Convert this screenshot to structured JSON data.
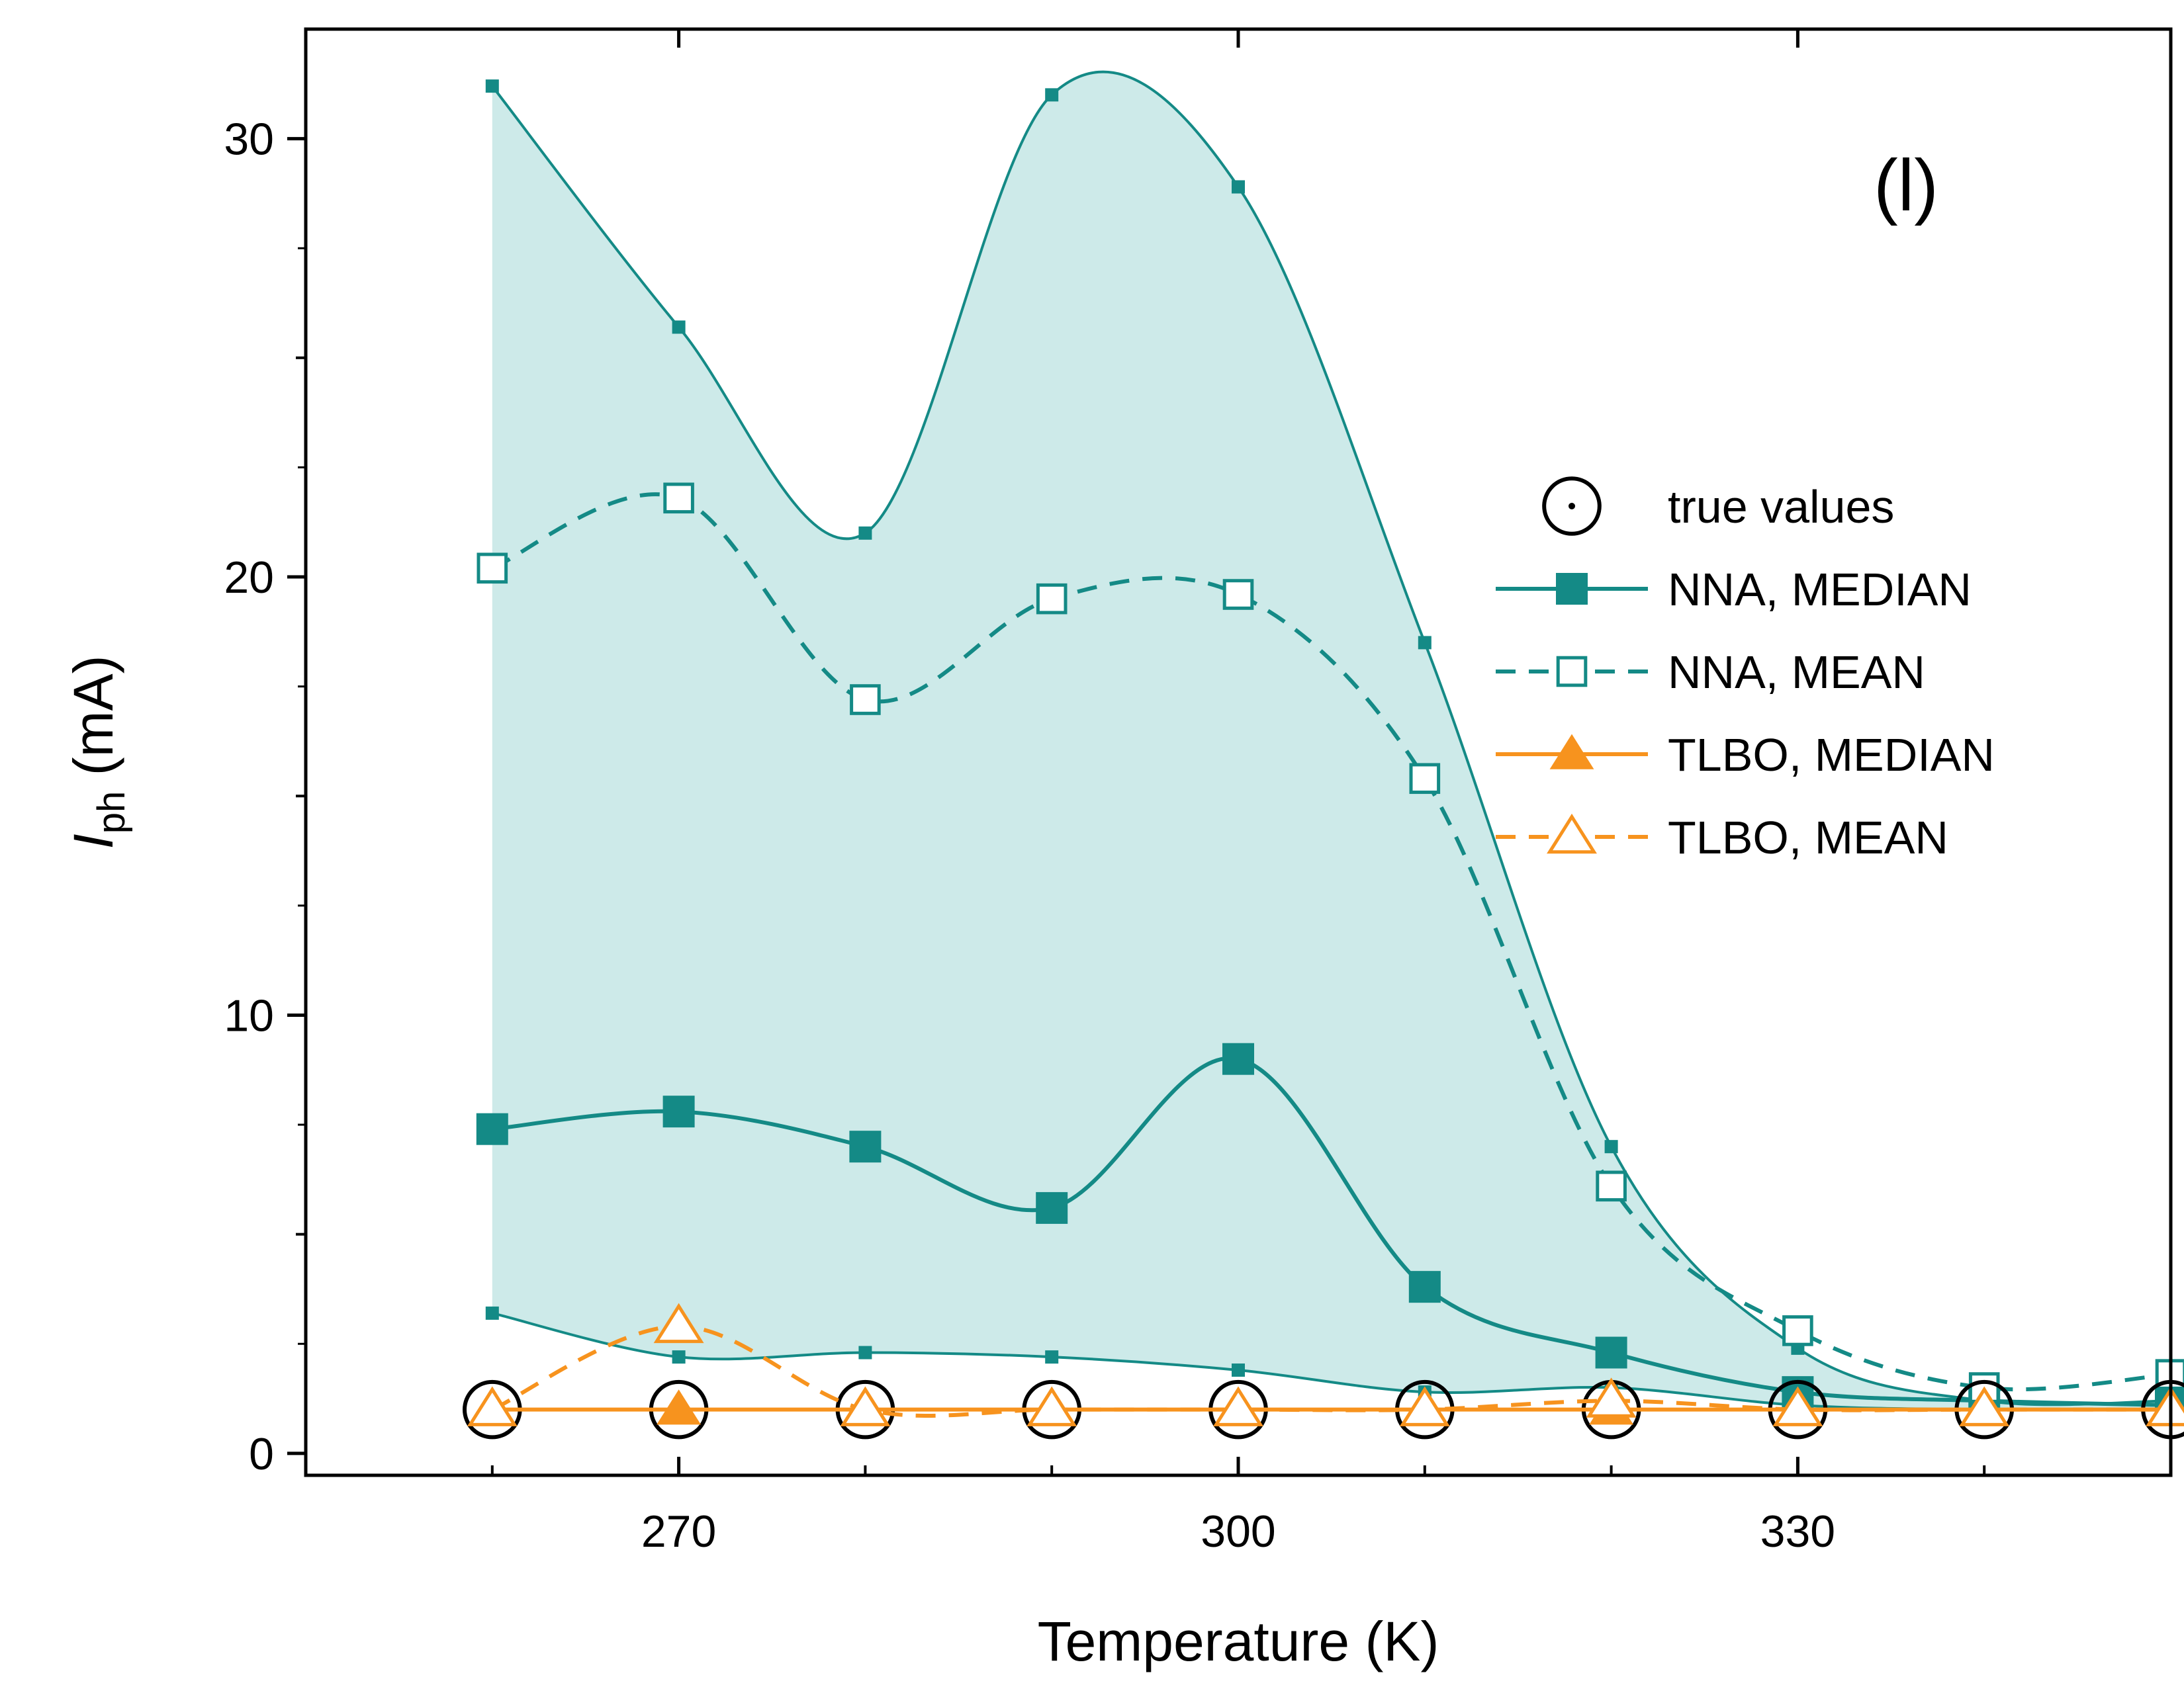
{
  "chart_data": {
    "type": "line",
    "panel_label": "(l)",
    "xlabel": "Temperature (K)",
    "ylabel_main": "I",
    "ylabel_sub": "ph",
    "ylabel_unit": " (mA)",
    "xlim": [
      250,
      350
    ],
    "ylim": [
      -0.5,
      32.5
    ],
    "xticks": [
      270,
      300,
      330
    ],
    "xticks_minor": [
      260,
      280,
      290,
      310,
      320,
      340,
      350
    ],
    "yticks": [
      0,
      10,
      20,
      30
    ],
    "yticks_minor": [
      5,
      15,
      25
    ],
    "x": [
      260,
      270,
      280,
      290,
      300,
      310,
      320,
      330,
      340,
      350
    ],
    "band": {
      "upper": [
        31.2,
        25.7,
        21.0,
        31.0,
        28.9,
        18.5,
        7.0,
        2.4,
        1.2,
        1.2
      ],
      "lower": [
        3.2,
        2.2,
        2.3,
        2.2,
        1.9,
        1.4,
        1.5,
        1.1,
        1.0,
        1.0
      ],
      "color": "#cdeae9",
      "edge_color": "#148a86"
    },
    "series": [
      {
        "name": "true values",
        "values": [
          1.0,
          1.0,
          1.0,
          1.0,
          1.0,
          1.0,
          1.0,
          1.0,
          1.0,
          1.0
        ],
        "marker": "circle-dot",
        "line": "none",
        "color": "#000000"
      },
      {
        "name": "NNA, MEDIAN",
        "values": [
          7.4,
          7.8,
          7.0,
          5.6,
          9.0,
          3.8,
          2.3,
          1.4,
          1.2,
          1.1
        ],
        "marker": "filled-square",
        "line": "solid",
        "color": "#148a86"
      },
      {
        "name": "NNA, MEAN",
        "values": [
          20.2,
          21.8,
          17.2,
          19.5,
          19.6,
          15.4,
          6.1,
          2.8,
          1.5,
          1.8
        ],
        "marker": "open-square",
        "line": "dashed",
        "color": "#148a86"
      },
      {
        "name": "TLBO, MEDIAN",
        "values": [
          1.0,
          1.0,
          1.0,
          1.0,
          1.0,
          1.0,
          1.0,
          1.0,
          1.0,
          1.0
        ],
        "marker": "filled-triangle",
        "line": "solid",
        "color": "#f7931e"
      },
      {
        "name": "TLBO, MEAN",
        "values": [
          1.0,
          2.9,
          1.0,
          1.0,
          1.0,
          1.0,
          1.2,
          1.0,
          1.0,
          1.0
        ],
        "marker": "open-triangle",
        "line": "dashed",
        "color": "#f7931e"
      }
    ],
    "legend_position": "right"
  }
}
